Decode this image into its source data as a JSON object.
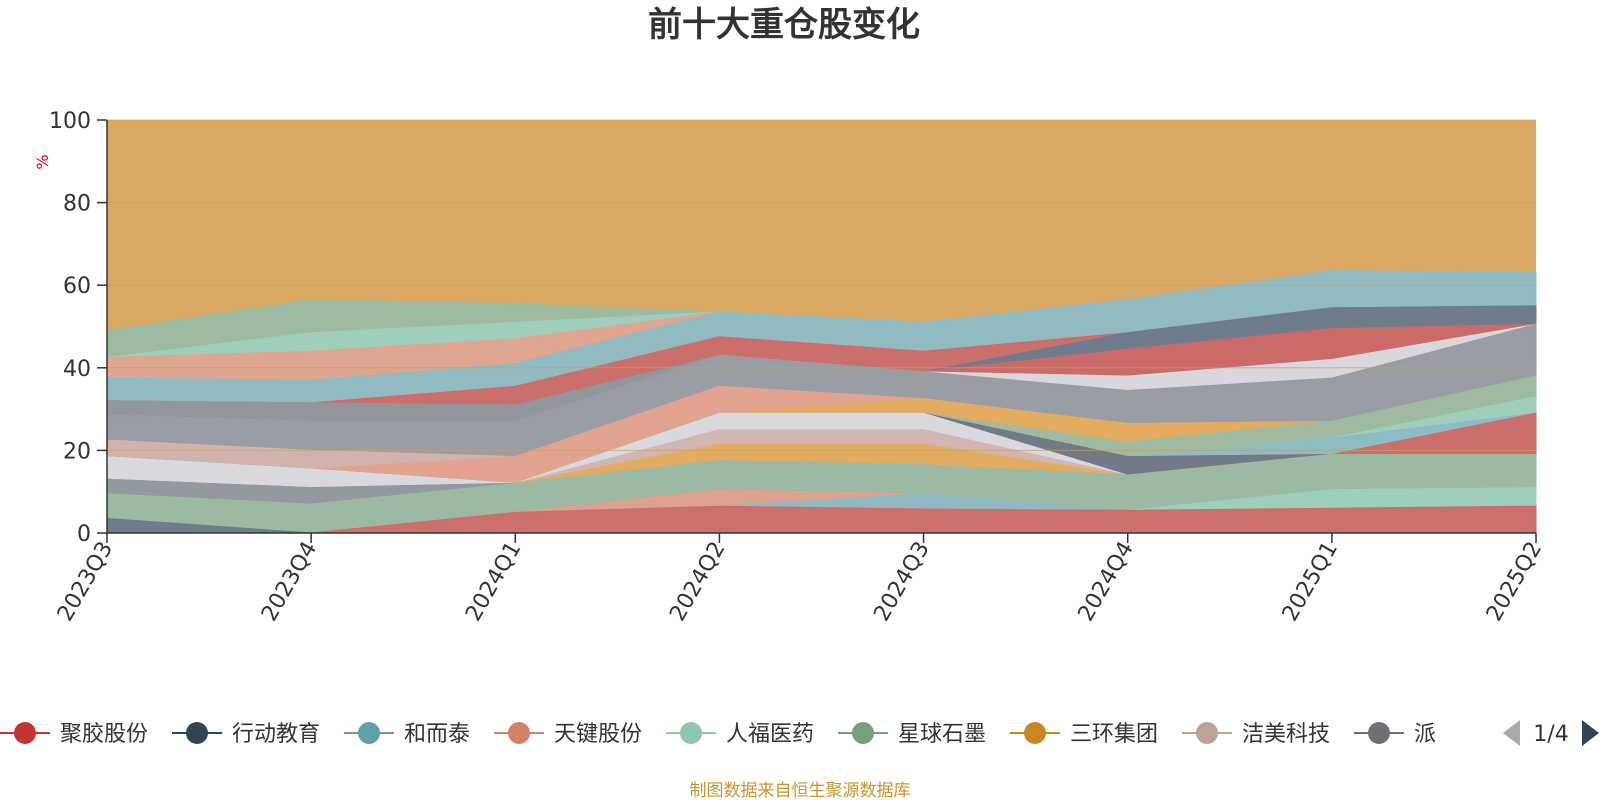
{
  "page": {
    "title": "前十大重仓股变化",
    "source": "制图数据来自恒生聚源数据库"
  },
  "legend": {
    "page_indicator": "1/4"
  },
  "colors": {
    "axis": "#333333",
    "grid": "#c8a060",
    "background_series": "#d9a963",
    "unit": "#ff0000",
    "source": "#c8962c"
  },
  "chart_data": {
    "type": "area",
    "stacked": true,
    "title": "前十大重仓股变化",
    "ylabel": "%",
    "ylim": [
      0,
      100
    ],
    "yticks": [
      0,
      20,
      40,
      60,
      80,
      100
    ],
    "categories": [
      "2023Q3",
      "2023Q4",
      "2024Q1",
      "2024Q2",
      "2024Q3",
      "2024Q4",
      "2025Q1",
      "2025Q2"
    ],
    "grid": true,
    "legend_position": "bottom",
    "background_fill": {
      "color": "#d9a963",
      "from_top": 100
    },
    "series": [
      {
        "name": "",
        "color": "#cf6a68",
        "top": [
          0,
          0,
          5,
          6.5,
          5.8,
          5.5,
          6,
          6.5
        ]
      },
      {
        "name": "",
        "color": "#9fd0bd",
        "top": [
          0,
          0,
          5,
          6.5,
          5.8,
          5.5,
          10.5,
          11
        ]
      },
      {
        "name": "",
        "color": "#8dbbc4",
        "top": [
          0,
          0,
          5,
          6.5,
          9.5,
          5.5,
          10.5,
          11
        ]
      },
      {
        "name": "",
        "color": "#e3a38f",
        "top": [
          0,
          0,
          5,
          10.5,
          9.5,
          5.5,
          10.5,
          11
        ]
      },
      {
        "name": "",
        "color": "#6d7a8a",
        "top": [
          3.5,
          0,
          5,
          10.5,
          9.5,
          5.5,
          10.5,
          11
        ]
      },
      {
        "name": "",
        "color": "#9bbba3",
        "top": [
          9.5,
          7,
          12,
          17.5,
          16.5,
          14,
          19,
          19
        ]
      },
      {
        "name": "",
        "color": "#8f98a0",
        "top": [
          13,
          11,
          12,
          17.5,
          16.5,
          14,
          19,
          19
        ]
      },
      {
        "name": "",
        "color": "#e3a38f",
        "top": [
          13,
          11,
          12,
          17.5,
          16.5,
          14,
          19,
          19
        ]
      },
      {
        "name": "",
        "color": "#e3ad5f",
        "top": [
          13,
          11,
          12,
          21.5,
          21.5,
          14,
          19,
          19
        ]
      },
      {
        "name": "",
        "color": "#d3b4b0",
        "top": [
          13,
          11,
          12,
          25,
          25,
          14,
          19,
          19
        ]
      },
      {
        "name": "",
        "color": "#d9dde3",
        "top": [
          18.5,
          15.5,
          12,
          29,
          29,
          14,
          19,
          19
        ]
      },
      {
        "name": "",
        "color": "#cf6a68",
        "top": [
          18.5,
          15.5,
          12,
          29,
          29,
          14,
          19,
          23.5
        ]
      },
      {
        "name": "",
        "color": "#8dbbc4",
        "top": [
          18.5,
          15.5,
          12,
          29,
          29,
          14,
          19,
          23.5
        ]
      },
      {
        "name": "",
        "color": "#6d7a8a",
        "top": [
          18.5,
          15.5,
          12,
          29,
          29,
          18.5,
          19,
          23.5
        ]
      },
      {
        "name": "",
        "color": "#cf6a68",
        "top": [
          18.5,
          15.5,
          12,
          29,
          29,
          18.5,
          19,
          29
        ]
      },
      {
        "name": "",
        "color": "#8dbbc4",
        "top": [
          18.5,
          15.5,
          12,
          29,
          29,
          18.5,
          23,
          29
        ]
      },
      {
        "name": "",
        "color": "#9fd0bd",
        "top": [
          18.5,
          15.5,
          12,
          29,
          29,
          18.5,
          23,
          33
        ]
      },
      {
        "name": "",
        "color": "#9bbba3",
        "top": [
          18.5,
          15.5,
          12,
          29,
          29,
          22,
          27,
          38
        ]
      },
      {
        "name": "",
        "color": "#e3ad5f",
        "top": [
          18.5,
          15.5,
          12,
          29,
          32.5,
          26.5,
          27,
          38
        ]
      },
      {
        "name": "",
        "color": "#e3a38f",
        "top": [
          18.5,
          15.5,
          18.5,
          35.5,
          32.5,
          26.5,
          27,
          38
        ]
      },
      {
        "name": "",
        "color": "#d3b4b0",
        "top": [
          22.5,
          20,
          18.5,
          35.5,
          32.5,
          26.5,
          27,
          38
        ]
      },
      {
        "name": "",
        "color": "#979ba0",
        "top": [
          28.5,
          27,
          27,
          43,
          39,
          34.5,
          37.5,
          50.5
        ]
      },
      {
        "name": "",
        "color": "#d9dde3",
        "top": [
          28.5,
          27,
          27,
          43,
          39,
          38,
          42,
          50.5
        ]
      },
      {
        "name": "",
        "color": "#cf6a68",
        "top": [
          28.5,
          27,
          27,
          43,
          39,
          44.5,
          49.5,
          50.5
        ]
      },
      {
        "name": "",
        "color": "#6d7a8a",
        "top": [
          28.5,
          27,
          27,
          43,
          39,
          48.5,
          54.5,
          55
        ]
      },
      {
        "name": "",
        "color": "#8f98a0",
        "top": [
          32,
          31.5,
          31,
          43,
          39,
          48.5,
          54.5,
          55
        ]
      },
      {
        "name": "",
        "color": "#cf6a68",
        "top": [
          32,
          31.5,
          35.5,
          47.5,
          44,
          48.5,
          54.5,
          55
        ]
      },
      {
        "name": "",
        "color": "#8dbbc4",
        "top": [
          37.5,
          37,
          41,
          53.5,
          51,
          56.5,
          63.5,
          63
        ]
      },
      {
        "name": "",
        "color": "#e3a38f",
        "top": [
          42.5,
          44,
          47,
          53.5,
          51,
          56.5,
          63.5,
          63
        ]
      },
      {
        "name": "",
        "color": "#9fd0bd",
        "top": [
          42.5,
          48.5,
          51,
          53.5,
          51,
          56.5,
          63.5,
          63
        ]
      },
      {
        "name": "",
        "color": "#9bbba3",
        "top": [
          49,
          56.5,
          55.5,
          53.5,
          51,
          56.5,
          63.5,
          63
        ]
      }
    ],
    "legend": [
      {
        "name": "聚胶股份",
        "color": "#c23531"
      },
      {
        "name": "行动教育",
        "color": "#2f4554"
      },
      {
        "name": "和而泰",
        "color": "#61a0a8"
      },
      {
        "name": "天键股份",
        "color": "#d48265"
      },
      {
        "name": "人福医药",
        "color": "#91c7ae"
      },
      {
        "name": "星球石墨",
        "color": "#749f83"
      },
      {
        "name": "三环集团",
        "color": "#ca8622"
      },
      {
        "name": "洁美科技",
        "color": "#bda29a"
      },
      {
        "name": "派",
        "color": "#6e7074"
      }
    ]
  }
}
